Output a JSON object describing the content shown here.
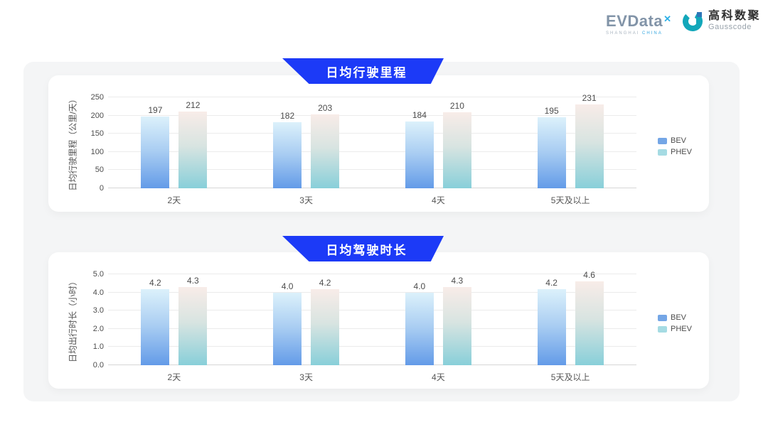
{
  "logo": {
    "evdata_text": "EVData",
    "evdata_x": "✕",
    "evdata_sub_left": "SHANGHAI",
    "evdata_sub_right": "CHINA",
    "gausscode_cn": "高科数聚",
    "gausscode_en": "Gausscode"
  },
  "colors": {
    "banner_blue": "#1c3af7",
    "board_gray": "#f4f5f6",
    "bev_top": "#dcf1fb",
    "bev_mid": "#a9cdf2",
    "bev_bottom": "#639be8",
    "phev_top": "#f8ece8",
    "phev_mid": "#d8e4e1",
    "phev_bottom": "#88cfd9",
    "legend_bev": "#74a6e6",
    "legend_phev": "#a5dbe3",
    "gridline": "#ebebeb"
  },
  "chart_data": [
    {
      "type": "bar",
      "title": "日均行驶里程",
      "ylabel": "日均行驶里程（公里/天）",
      "categories": [
        "2天",
        "3天",
        "4天",
        "5天及以上"
      ],
      "series": [
        {
          "name": "BEV",
          "values": [
            197,
            182,
            184,
            195
          ],
          "labels": [
            "197",
            "182",
            "184",
            "195"
          ]
        },
        {
          "name": "PHEV",
          "values": [
            212,
            203,
            210,
            231
          ],
          "labels": [
            "212",
            "203",
            "210",
            "231"
          ]
        }
      ],
      "ylim": [
        0,
        250
      ],
      "yticks": [
        "0",
        "50",
        "100",
        "150",
        "200",
        "250"
      ],
      "grid": true,
      "legend_position": "right",
      "legend": [
        "BEV",
        "PHEV"
      ]
    },
    {
      "type": "bar",
      "title": "日均驾驶时长",
      "ylabel": "日均出行时长（小时）",
      "categories": [
        "2天",
        "3天",
        "4天",
        "5天及以上"
      ],
      "series": [
        {
          "name": "BEV",
          "values": [
            4.2,
            4.0,
            4.0,
            4.2
          ],
          "labels": [
            "4.2",
            "4.0",
            "4.0",
            "4.2"
          ]
        },
        {
          "name": "PHEV",
          "values": [
            4.3,
            4.2,
            4.3,
            4.6
          ],
          "labels": [
            "4.3",
            "4.2",
            "4.3",
            "4.6"
          ]
        }
      ],
      "ylim": [
        0,
        5
      ],
      "yticks": [
        "0.0",
        "1.0",
        "2.0",
        "3.0",
        "4.0",
        "5.0"
      ],
      "grid": true,
      "legend_position": "right",
      "legend": [
        "BEV",
        "PHEV"
      ]
    }
  ]
}
